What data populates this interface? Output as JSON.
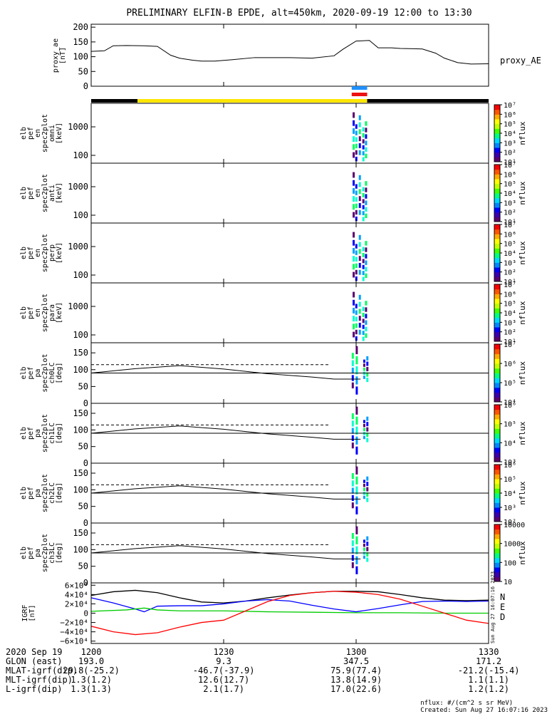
{
  "title": "PRELIMINARY ELFIN-B EPDE, alt=450km, 2020-09-19 12:00 to 13:30",
  "chart_data": {
    "type": "multi-panel time series / spectrogram",
    "time_range": [
      "12:00",
      "13:30"
    ],
    "x_ticks": [
      "1200",
      "1230",
      "1300",
      "1330"
    ],
    "ae_panel": {
      "ylabel": [
        "proxy_ae",
        "[nT]"
      ],
      "yticks": [
        0,
        50,
        100,
        150,
        200
      ],
      "ylim": [
        0,
        210
      ],
      "legend": "proxy_AE",
      "series": {
        "name": "proxy_AE",
        "x_min": [
          0,
          3,
          5,
          8,
          12,
          15,
          18,
          20,
          23,
          25,
          28,
          32,
          37,
          45,
          50,
          55,
          57,
          60,
          63,
          65,
          68,
          70,
          73,
          75,
          78,
          80,
          83,
          86,
          90
        ],
        "y": [
          118,
          120,
          137,
          138,
          137,
          135,
          105,
          95,
          88,
          85,
          85,
          90,
          97,
          97,
          95,
          103,
          125,
          153,
          155,
          130,
          130,
          128,
          127,
          126,
          112,
          95,
          80,
          75,
          76
        ]
      }
    },
    "status_bar": {
      "black_end_min": 10.5,
      "yellow_end_min": 62.5,
      "blue_flag": [
        59.0,
        62.5
      ],
      "red_flag": [
        59.0,
        62.5
      ]
    },
    "spectrogram_panels": [
      {
        "ylabel": [
          "elb",
          "pef",
          "en",
          "spec2plot",
          "omni",
          "[keV]"
        ],
        "yticks": [
          "100",
          "1000"
        ],
        "colorbar": "log",
        "cb_label": "nflux",
        "cb_ticks": [
          "10¹",
          "10²",
          "10³",
          "10⁴",
          "10⁵",
          "10⁶",
          "10⁷"
        ]
      },
      {
        "ylabel": [
          "elb",
          "pef",
          "en",
          "spec2plot",
          "anti",
          "[keV]"
        ],
        "yticks": [
          "100",
          "1000"
        ],
        "colorbar": "log",
        "cb_label": "nflux",
        "cb_ticks": [
          "10¹",
          "10²",
          "10³",
          "10⁴",
          "10⁵",
          "10⁶",
          "10⁷"
        ]
      },
      {
        "ylabel": [
          "elb",
          "pef",
          "en",
          "spec2plot",
          "perp",
          "[keV]"
        ],
        "yticks": [
          "100",
          "1000"
        ],
        "colorbar": "log",
        "cb_label": "nflux",
        "cb_ticks": [
          "10¹",
          "10²",
          "10³",
          "10⁴",
          "10⁵",
          "10⁶",
          "10⁷"
        ]
      },
      {
        "ylabel": [
          "elb",
          "pef",
          "en",
          "spec2plot",
          "para",
          "[keV]"
        ],
        "yticks": [
          "100",
          "1000"
        ],
        "colorbar": "log",
        "cb_label": "nflux",
        "cb_ticks": [
          "10¹",
          "10²",
          "10³",
          "10⁴",
          "10⁵",
          "10⁶",
          "10⁷"
        ]
      }
    ],
    "pitch_angle_panels": [
      {
        "ylabel": [
          "elb",
          "pef",
          "pa",
          "spec2plot",
          "ch0LC",
          "[deg]"
        ],
        "yticks": [
          0,
          50,
          100,
          150
        ],
        "cb_ticks": [
          "10⁴",
          "10⁵",
          "10⁶",
          "10⁷"
        ],
        "cb_label": "nflux"
      },
      {
        "ylabel": [
          "elb",
          "pef",
          "pa",
          "spec2plot",
          "ch1LC",
          "[deg]"
        ],
        "yticks": [
          0,
          50,
          100,
          150
        ],
        "cb_ticks": [
          "10³",
          "10⁴",
          "10⁵",
          "10⁶"
        ],
        "cb_label": "nflux"
      },
      {
        "ylabel": [
          "elb",
          "pef",
          "pa",
          "spec2plot",
          "ch2LC",
          "[deg]"
        ],
        "yticks": [
          0,
          50,
          100,
          150
        ],
        "cb_ticks": [
          "10²",
          "10³",
          "10⁴",
          "10⁵",
          "10⁶"
        ],
        "cb_label": "nflux"
      },
      {
        "ylabel": [
          "elb",
          "pef",
          "pa",
          "spec2plot",
          "ch3LC",
          "[deg]"
        ],
        "yticks": [
          0,
          50,
          100,
          150
        ],
        "cb_ticks": [
          "10",
          "100",
          "1000",
          "10000"
        ],
        "cb_label": "nflux"
      }
    ],
    "loss_cone": {
      "x_min": [
        0,
        10,
        20,
        30,
        40,
        50,
        55
      ],
      "solid_deg": [
        90,
        103,
        112,
        102,
        88,
        78,
        72
      ],
      "dashed_deg": [
        115,
        115,
        115,
        115,
        115,
        115,
        115
      ]
    },
    "igrf_panel": {
      "ylabel": [
        "IGRF",
        "[nT]"
      ],
      "yticks": [
        "6×10⁴",
        "4×10⁴",
        "2×10⁴",
        "0",
        "−2×10⁴",
        "−4×10⁴",
        "−6×10⁴"
      ],
      "ylim": [
        -65000,
        65000
      ],
      "legend": [
        "N",
        "E",
        "D"
      ],
      "legend_colors": [
        "#0000ff",
        "#00cc00",
        "#ff0000"
      ],
      "series": [
        {
          "name": "total",
          "color": "#000000",
          "x_min": [
            0,
            5,
            10,
            15,
            20,
            25,
            30,
            35,
            40,
            45,
            50,
            55,
            60,
            65,
            70,
            75,
            80,
            85,
            90
          ],
          "y": [
            38000,
            46000,
            49000,
            44000,
            33000,
            24000,
            22000,
            26000,
            33000,
            39000,
            44000,
            47000,
            47000,
            46000,
            40000,
            33000,
            28000,
            27000,
            28000
          ]
        },
        {
          "name": "N",
          "color": "#0000ff",
          "x_min": [
            0,
            5,
            10,
            12,
            15,
            20,
            25,
            30,
            35,
            40,
            45,
            50,
            55,
            60,
            65,
            70,
            75,
            80,
            85,
            90
          ],
          "y": [
            33000,
            22000,
            9000,
            3000,
            15000,
            16000,
            16000,
            20000,
            26000,
            29000,
            26000,
            17000,
            9000,
            3000,
            10000,
            18000,
            25000,
            26000,
            25000,
            26000
          ]
        },
        {
          "name": "E",
          "color": "#00cc00",
          "x_min": [
            0,
            8,
            12,
            15,
            20,
            25,
            30,
            40,
            50,
            60,
            70,
            80,
            90
          ],
          "y": [
            4000,
            7000,
            11000,
            7000,
            5000,
            5000,
            5000,
            3000,
            2000,
            1000,
            1000,
            0,
            0
          ]
        },
        {
          "name": "D",
          "color": "#ff0000",
          "x_min": [
            0,
            5,
            10,
            15,
            20,
            25,
            30,
            35,
            40,
            45,
            50,
            55,
            60,
            65,
            70,
            75,
            80,
            85,
            90
          ],
          "y": [
            -28000,
            -40000,
            -46000,
            -42000,
            -30000,
            -20000,
            -15000,
            5000,
            25000,
            38000,
            44000,
            47000,
            45000,
            40000,
            30000,
            15000,
            0,
            -15000,
            -22000
          ]
        }
      ],
      "side_stamp": "Sun Aug 27 16:07:16 2023"
    },
    "ephemeris": {
      "rows": [
        {
          "label": "2020 Sep 19",
          "values": [
            "1200",
            "1230",
            "1300",
            "1330"
          ]
        },
        {
          "label": "GLON (east)",
          "values": [
            "193.0",
            "9.3",
            "347.5",
            "171.2"
          ]
        },
        {
          "label": "MLAT-igrf(dip)",
          "values": [
            "29.8(-25.2)",
            "-46.7(-37.9)",
            "75.9(77.4)",
            "-21.2(-15.4)"
          ]
        },
        {
          "label": "MLT-igrf(dip)",
          "values": [
            "1.3(1.2)",
            "12.6(12.7)",
            "13.8(14.9)",
            "1.1(1.1)"
          ]
        },
        {
          "label": "L-igrf(dip)",
          "values": [
            "1.3(1.3)",
            "2.1(1.7)",
            "17.0(22.6)",
            "1.2(1.2)"
          ]
        }
      ]
    },
    "footnote": [
      "nflux: #/(cm^2 s sr MeV)",
      "Created: Sun Aug 27 16:07:16 2023"
    ]
  }
}
